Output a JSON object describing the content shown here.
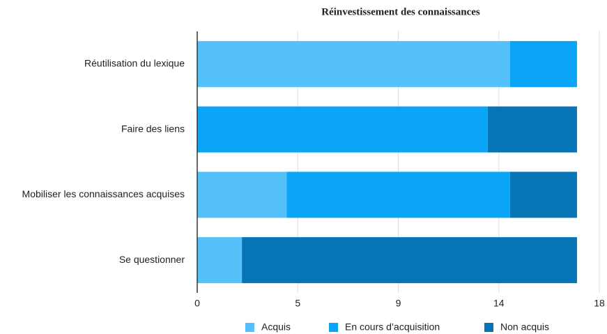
{
  "chart_data": {
    "type": "bar",
    "orientation": "horizontal",
    "stacked": true,
    "title": "Réinvestissement des connaissances",
    "categories": [
      "Réutilisation du lexique",
      "Faire des liens",
      "Mobiliser les connaissances acquises",
      "Se questionner"
    ],
    "series": [
      {
        "name": "Acquis",
        "color": "#55c1fa",
        "values": [
          14,
          0,
          4,
          2
        ]
      },
      {
        "name": "En cours d’acquisition",
        "color": "#0aa5f7",
        "values": [
          3,
          13,
          10,
          0
        ]
      },
      {
        "name": "Non acquis",
        "color": "#0775b5",
        "values": [
          0,
          4,
          3,
          15
        ]
      }
    ],
    "xlim": [
      0,
      18
    ],
    "xticks": [
      0,
      {
        "value": 4.5,
        "label": "5"
      },
      9,
      {
        "value": 13.5,
        "label": "14"
      },
      18
    ],
    "grid": true,
    "legend": "bottom"
  }
}
